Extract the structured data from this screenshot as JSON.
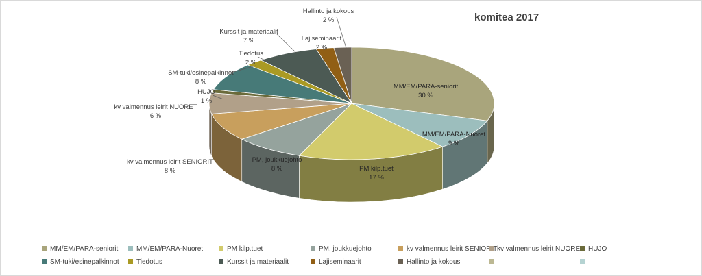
{
  "chart_data": {
    "type": "pie",
    "title": "komitea 2017",
    "three_d": true,
    "legend_position": "bottom",
    "slices": [
      {
        "label": "MM/EM/PARA-seniorit",
        "value": 30,
        "value_label": "30 %",
        "color": "#a9a57c"
      },
      {
        "label": "MM/EM/PARA-Nuoret",
        "value": 9,
        "value_label": "9 %",
        "color": "#9cbebd"
      },
      {
        "label": "PM kilp.tuet",
        "value": 17,
        "value_label": "17 %",
        "color": "#d2cb6c"
      },
      {
        "label": "PM, joukkuejohto",
        "value": 8,
        "value_label": "8 %",
        "color": "#95a39d"
      },
      {
        "label": "kv valmennus leirit SENIORIT",
        "value": 8,
        "value_label": "8 %",
        "color": "#c89f5d"
      },
      {
        "label": "kv valmennus leirit NUORET",
        "value": 6,
        "value_label": "6 %",
        "color": "#b1a089"
      },
      {
        "label": "HUJO",
        "value": 1,
        "value_label": "1 %",
        "color": "#6b6b3b"
      },
      {
        "label": "SM-tuki/esinepalkinnot",
        "value": 8,
        "value_label": "8 %",
        "color": "#477a78"
      },
      {
        "label": "Tiedotus",
        "value": 2,
        "value_label": "2 %",
        "color": "#aa9a24"
      },
      {
        "label": "Kurssit ja materiaalit",
        "value": 7,
        "value_label": "7 %",
        "color": "#4c5a54"
      },
      {
        "label": "Lajiseminaarit",
        "value": 2,
        "value_label": "2 %",
        "color": "#915f15"
      },
      {
        "label": "Hallinto ja kokous",
        "value": 2,
        "value_label": "2 %",
        "color": "#6a6154"
      }
    ],
    "extra_legend_swatches": [
      "#bcb893",
      "#b5d3d2"
    ]
  }
}
